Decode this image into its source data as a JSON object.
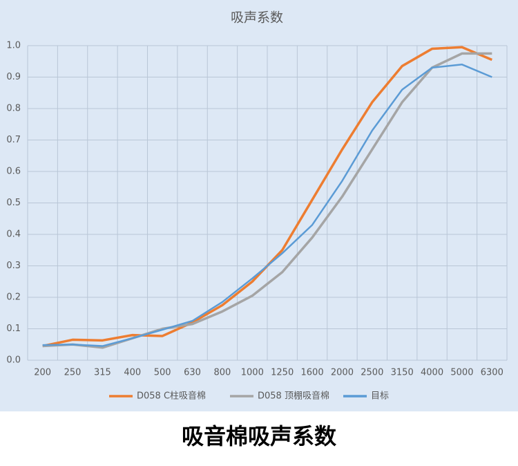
{
  "chart_data": {
    "type": "line",
    "title": "吸声系数",
    "categories": [
      "200",
      "250",
      "315",
      "400",
      "500",
      "630",
      "800",
      "1000",
      "1250",
      "1600",
      "2000",
      "2500",
      "3150",
      "4000",
      "5000",
      "6300"
    ],
    "series": [
      {
        "name": "D058 C柱吸音棉",
        "color": "#ed7d31",
        "values": [
          0.045,
          0.065,
          0.063,
          0.08,
          0.077,
          0.12,
          0.175,
          0.25,
          0.35,
          0.51,
          0.67,
          0.82,
          0.935,
          0.99,
          0.995,
          0.955
        ]
      },
      {
        "name": "D058 顶棚吸音棉",
        "color": "#a5a5a5",
        "values": [
          0.045,
          0.05,
          0.04,
          0.07,
          0.1,
          0.115,
          0.155,
          0.205,
          0.28,
          0.39,
          0.52,
          0.67,
          0.82,
          0.93,
          0.975,
          0.975
        ]
      },
      {
        "name": "目标",
        "color": "#5b9bd5",
        "values": [
          0.048,
          0.05,
          0.045,
          0.07,
          0.097,
          0.125,
          0.185,
          0.26,
          0.34,
          0.43,
          0.57,
          0.73,
          0.86,
          0.93,
          0.94,
          0.9
        ]
      }
    ],
    "ylim": [
      0,
      1
    ],
    "yticks": [
      {
        "value": 0,
        "label": "0.0"
      },
      0.1,
      0.2,
      0.3,
      0.4,
      0.5,
      0.6,
      0.7,
      0.8,
      0.9,
      {
        "value": 1,
        "label": "1.0"
      }
    ],
    "grid": true,
    "legend": "bottom"
  },
  "caption": "吸音棉吸声系数"
}
